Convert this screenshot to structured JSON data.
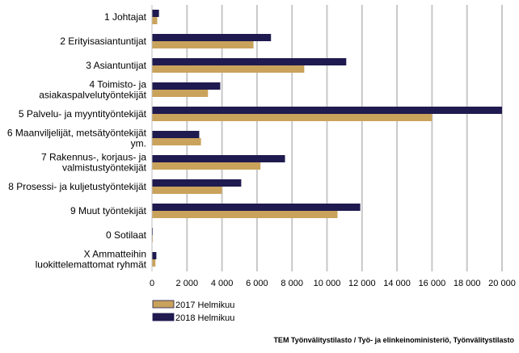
{
  "chart_data": {
    "type": "bar",
    "orientation": "horizontal",
    "categories": [
      [
        "1 Johtajat"
      ],
      [
        "2 Erityisasiantuntijat"
      ],
      [
        "3 Asiantuntijat"
      ],
      [
        "4 Toimisto- ja",
        "asiakaspalvelutyöntekijät"
      ],
      [
        "5 Palvelu- ja myyntityöntekijät"
      ],
      [
        "6 Maanviljelijät, metsätyöntekijät",
        "ym."
      ],
      [
        "7 Rakennus-, korjaus- ja",
        "valmistustyöntekijät"
      ],
      [
        "8 Prosessi- ja kuljetustyöntekijät"
      ],
      [
        "9 Muut työntekijät"
      ],
      [
        "0 Sotilaat"
      ],
      [
        "X Ammatteihin",
        "luokittelemattomat ryhmät"
      ]
    ],
    "series": [
      {
        "name": "2018 Helmikuu",
        "color": "#1f1a4f",
        "values": [
          400,
          6800,
          11100,
          3900,
          20000,
          2700,
          7600,
          5100,
          11900,
          30,
          250
        ]
      },
      {
        "name": "2017 Helmikuu",
        "color": "#c9a25b",
        "values": [
          300,
          5800,
          8700,
          3200,
          16000,
          2800,
          6200,
          4000,
          10600,
          20,
          200
        ]
      }
    ],
    "xlim": [
      0,
      20000
    ],
    "xticks": [
      "0",
      "2 000",
      "4 000",
      "6 000",
      "8 000",
      "10 000",
      "12 000",
      "14 000",
      "16 000",
      "18 000",
      "20 000"
    ],
    "xtick_values": [
      0,
      2000,
      4000,
      6000,
      8000,
      10000,
      12000,
      14000,
      16000,
      18000,
      20000
    ],
    "grid": true,
    "legend_placement": "bottom-left",
    "legend_order": [
      "2017 Helmikuu",
      "2018 Helmikuu"
    ]
  },
  "source": "TEM Työnvälitystilasto / Työ- ja elinkeinoministeriö, Työnvälitystilasto"
}
